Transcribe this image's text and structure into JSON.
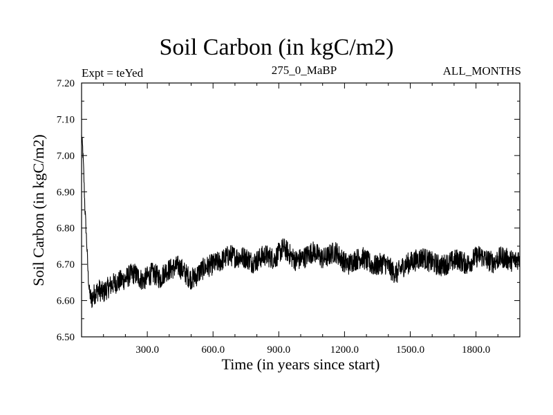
{
  "chart_data": {
    "type": "line",
    "title": "Soil Carbon (in kgC/m2)",
    "subtitle_left": "Expt = teYed",
    "subtitle_center": "275_0_MaBP",
    "subtitle_right": "ALL_MONTHS",
    "xlabel": "Time (in years since start)",
    "ylabel": "Soil Carbon (in kgC/m2)",
    "xlim": [
      0,
      2000
    ],
    "ylim": [
      6.5,
      7.2
    ],
    "xticks": [
      300,
      600,
      900,
      1200,
      1500,
      1800
    ],
    "xtick_labels": [
      "300.0",
      "600.0",
      "900.0",
      "1200.0",
      "1500.0",
      "1800.0"
    ],
    "yticks": [
      6.5,
      6.6,
      6.7,
      6.8,
      6.9,
      7.0,
      7.1,
      7.2
    ],
    "ytick_labels": [
      "6.50",
      "6.60",
      "6.70",
      "6.80",
      "6.90",
      "7.00",
      "7.10",
      "7.20"
    ],
    "series": [
      {
        "name": "Soil Carbon",
        "color": "#000000",
        "noise_amplitude": 0.03,
        "x": [
          0,
          5,
          10,
          15,
          20,
          25,
          30,
          35,
          40,
          45,
          50,
          60,
          70,
          80,
          90,
          100,
          110,
          120,
          140,
          160,
          180,
          200,
          220,
          240,
          260,
          280,
          300,
          320,
          340,
          360,
          380,
          400,
          420,
          440,
          460,
          480,
          500,
          520,
          540,
          560,
          580,
          600,
          620,
          640,
          660,
          680,
          700,
          720,
          740,
          760,
          780,
          800,
          820,
          840,
          860,
          880,
          900,
          920,
          940,
          960,
          980,
          1000,
          1020,
          1040,
          1060,
          1080,
          1100,
          1120,
          1140,
          1160,
          1180,
          1200,
          1220,
          1240,
          1260,
          1280,
          1300,
          1320,
          1340,
          1360,
          1380,
          1400,
          1420,
          1440,
          1460,
          1480,
          1500,
          1520,
          1540,
          1560,
          1580,
          1600,
          1620,
          1640,
          1660,
          1680,
          1700,
          1720,
          1740,
          1760,
          1780,
          1800,
          1820,
          1840,
          1860,
          1880,
          1900,
          1920,
          1940,
          1960,
          1980,
          2000
        ],
        "y": [
          7.05,
          7.02,
          6.95,
          6.86,
          6.8,
          6.74,
          6.67,
          6.63,
          6.61,
          6.6,
          6.61,
          6.62,
          6.625,
          6.63,
          6.625,
          6.62,
          6.63,
          6.635,
          6.645,
          6.65,
          6.655,
          6.66,
          6.67,
          6.675,
          6.665,
          6.655,
          6.665,
          6.675,
          6.67,
          6.66,
          6.68,
          6.685,
          6.69,
          6.695,
          6.685,
          6.67,
          6.66,
          6.665,
          6.68,
          6.69,
          6.695,
          6.7,
          6.705,
          6.71,
          6.72,
          6.725,
          6.72,
          6.72,
          6.72,
          6.715,
          6.705,
          6.71,
          6.72,
          6.725,
          6.72,
          6.715,
          6.73,
          6.745,
          6.735,
          6.72,
          6.71,
          6.715,
          6.72,
          6.73,
          6.735,
          6.725,
          6.715,
          6.72,
          6.73,
          6.735,
          6.72,
          6.705,
          6.7,
          6.71,
          6.715,
          6.72,
          6.71,
          6.7,
          6.695,
          6.7,
          6.705,
          6.695,
          6.68,
          6.675,
          6.69,
          6.7,
          6.705,
          6.71,
          6.715,
          6.72,
          6.71,
          6.705,
          6.7,
          6.695,
          6.7,
          6.705,
          6.71,
          6.715,
          6.705,
          6.7,
          6.71,
          6.72,
          6.725,
          6.715,
          6.71,
          6.705,
          6.715,
          6.72,
          6.715,
          6.71,
          6.71,
          6.72
        ]
      }
    ]
  }
}
